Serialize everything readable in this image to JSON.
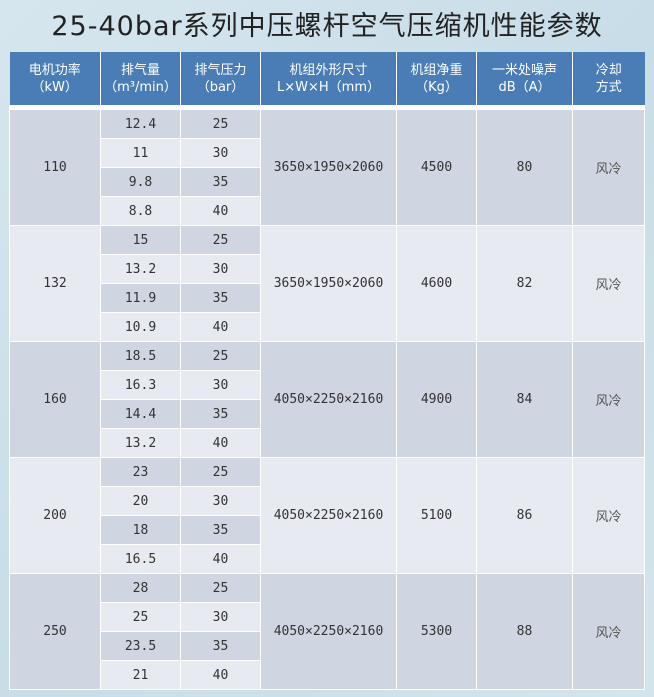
{
  "title": "25-40bar系列中压螺杆空气压缩机性能参数",
  "headers": [
    [
      "电机功率",
      "（kW）"
    ],
    [
      "排气量",
      "（m³/min）"
    ],
    [
      "排气压力",
      "（bar）"
    ],
    [
      "机组外形尺寸",
      "L×W×H（mm）"
    ],
    [
      "机组净重",
      "（Kg）"
    ],
    [
      "一米处噪声",
      "dB（A）"
    ],
    [
      "冷却",
      "方式"
    ]
  ],
  "groups": [
    {
      "power": "110",
      "rows": [
        [
          "12.4",
          "25"
        ],
        [
          "11",
          "30"
        ],
        [
          "9.8",
          "35"
        ],
        [
          "8.8",
          "40"
        ]
      ],
      "dims": "3650×1950×2060",
      "weight": "4500",
      "noise": "80",
      "cooling": "风冷"
    },
    {
      "power": "132",
      "rows": [
        [
          "15",
          "25"
        ],
        [
          "13.2",
          "30"
        ],
        [
          "11.9",
          "35"
        ],
        [
          "10.9",
          "40"
        ]
      ],
      "dims": "3650×1950×2060",
      "weight": "4600",
      "noise": "82",
      "cooling": "风冷"
    },
    {
      "power": "160",
      "rows": [
        [
          "18.5",
          "25"
        ],
        [
          "16.3",
          "30"
        ],
        [
          "14.4",
          "35"
        ],
        [
          "13.2",
          "40"
        ]
      ],
      "dims": "4050×2250×2160",
      "weight": "4900",
      "noise": "84",
      "cooling": "风冷"
    },
    {
      "power": "200",
      "rows": [
        [
          "23",
          "25"
        ],
        [
          "20",
          "30"
        ],
        [
          "18",
          "35"
        ],
        [
          "16.5",
          "40"
        ]
      ],
      "dims": "4050×2250×2160",
      "weight": "5100",
      "noise": "86",
      "cooling": "风冷"
    },
    {
      "power": "250",
      "rows": [
        [
          "28",
          "25"
        ],
        [
          "25",
          "30"
        ],
        [
          "23.5",
          "35"
        ],
        [
          "21",
          "40"
        ]
      ],
      "dims": "4050×2250×2160",
      "weight": "5300",
      "noise": "88",
      "cooling": "风冷"
    }
  ]
}
